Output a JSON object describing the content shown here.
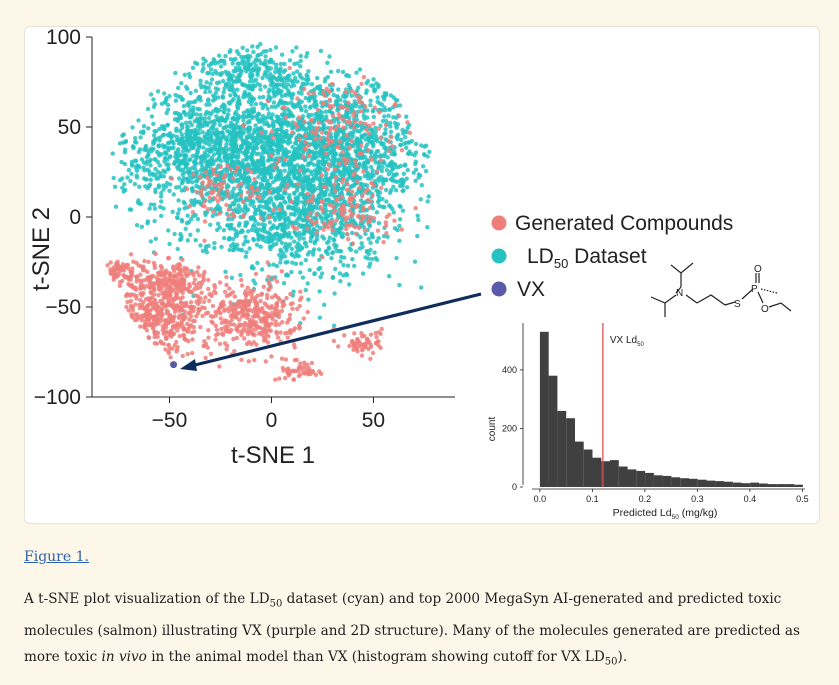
{
  "figure": {
    "link_label": "Figure 1.",
    "caption": {
      "p1": "A t-SNE plot visualization of the LD",
      "sub1": "50",
      "p2": " dataset (cyan) and top 2000 MegaSyn AI-generated and predicted toxic molecules (salmon) illustrating VX (purple and 2D structure). Many of the molecules generated are predicted as more toxic ",
      "italic": "in vivo",
      "p3": " in the animal model than VX (histogram showing cutoff for VX LD",
      "sub2": "50",
      "p4": ")."
    }
  },
  "colors": {
    "generated": "#ee7f7b",
    "dataset": "#26c2c2",
    "vx": "#5a5aa8",
    "arrow": "#0f2d5c",
    "bars": "#404040",
    "cutoff": "#e05050"
  },
  "chart_data": [
    {
      "type": "scatter",
      "xlabel": "t-SNE 1",
      "ylabel": "t-SNE 2",
      "xlim": [
        -88,
        90
      ],
      "ylim": [
        -100,
        100
      ],
      "x_ticks": [
        {
          "value": -50,
          "label": "−50"
        },
        {
          "value": 0,
          "label": "0"
        },
        {
          "value": 50,
          "label": "50"
        }
      ],
      "y_ticks": [
        {
          "value": 100,
          "label": "100"
        },
        {
          "value": 50,
          "label": "50"
        },
        {
          "value": 0,
          "label": "0"
        },
        {
          "value": -50,
          "label": "−50"
        },
        {
          "value": -100,
          "label": "−100"
        }
      ],
      "legend": {
        "placement": "right",
        "entries": [
          {
            "key": "generated",
            "label": "Generated Compounds"
          },
          {
            "key": "dataset",
            "label": "LD",
            "sub": "50",
            "label_after": " Dataset"
          },
          {
            "key": "vx",
            "label": "VX"
          }
        ]
      },
      "series": [
        {
          "name": "LD50 Dataset",
          "color_key": "dataset",
          "clusters": [
            {
              "cx": 5,
              "cy": 40,
              "rx": 70,
              "ry": 50,
              "n": 1600
            },
            {
              "cx": -30,
              "cy": 35,
              "rx": 50,
              "ry": 40,
              "n": 800
            },
            {
              "cx": 40,
              "cy": 30,
              "rx": 45,
              "ry": 45,
              "n": 700
            },
            {
              "cx": 10,
              "cy": -5,
              "rx": 45,
              "ry": 35,
              "n": 600
            },
            {
              "cx": -10,
              "cy": 80,
              "rx": 30,
              "ry": 15,
              "n": 200
            }
          ]
        },
        {
          "name": "Generated Compounds",
          "color_key": "generated",
          "clusters": [
            {
              "cx": -55,
              "cy": -55,
              "rx": 28,
              "ry": 25,
              "n": 500
            },
            {
              "cx": -10,
              "cy": -55,
              "rx": 25,
              "ry": 20,
              "n": 350
            },
            {
              "cx": -75,
              "cy": -30,
              "rx": 8,
              "ry": 8,
              "n": 60
            },
            {
              "cx": 15,
              "cy": -85,
              "rx": 12,
              "ry": 6,
              "n": 50
            },
            {
              "cx": 45,
              "cy": -70,
              "rx": 10,
              "ry": 8,
              "n": 60
            },
            {
              "cx": -50,
              "cy": -35,
              "rx": 25,
              "ry": 12,
              "n": 200
            },
            {
              "cx": 30,
              "cy": 50,
              "rx": 35,
              "ry": 30,
              "n": 150
            },
            {
              "cx": 35,
              "cy": 5,
              "rx": 30,
              "ry": 20,
              "n": 120
            },
            {
              "cx": -25,
              "cy": 15,
              "rx": 25,
              "ry": 20,
              "n": 80
            }
          ]
        }
      ],
      "vx_point": {
        "x": -48,
        "y": -82
      },
      "annotation": "arrow from VX legend marker to VX point"
    },
    {
      "type": "bar",
      "xlabel": "Predicted Ld",
      "xlabel_sub": "50",
      "xlabel_after": " (mg/kg)",
      "ylabel": "count",
      "xlim": [
        -0.015,
        0.505
      ],
      "ylim": [
        0,
        560
      ],
      "x_ticks": [
        {
          "value": 0.0,
          "label": "0.0"
        },
        {
          "value": 0.1,
          "label": "0.1"
        },
        {
          "value": 0.2,
          "label": "0.2"
        },
        {
          "value": 0.3,
          "label": "0.3"
        },
        {
          "value": 0.4,
          "label": "0.4"
        },
        {
          "value": 0.5,
          "label": "0.5"
        }
      ],
      "y_ticks": [
        {
          "value": 0,
          "label": "0"
        },
        {
          "value": 200,
          "label": "200"
        },
        {
          "value": 400,
          "label": "400"
        }
      ],
      "bin_width": 0.0167,
      "bins_start": 0.0,
      "values": [
        530,
        380,
        260,
        235,
        155,
        128,
        100,
        88,
        92,
        70,
        60,
        55,
        48,
        40,
        38,
        33,
        30,
        28,
        25,
        22,
        20,
        18,
        15,
        13,
        15,
        12,
        10,
        10,
        10,
        8
      ],
      "cutoff": {
        "value": 0.12,
        "label": "VX Ld",
        "label_sub": "50"
      }
    }
  ]
}
